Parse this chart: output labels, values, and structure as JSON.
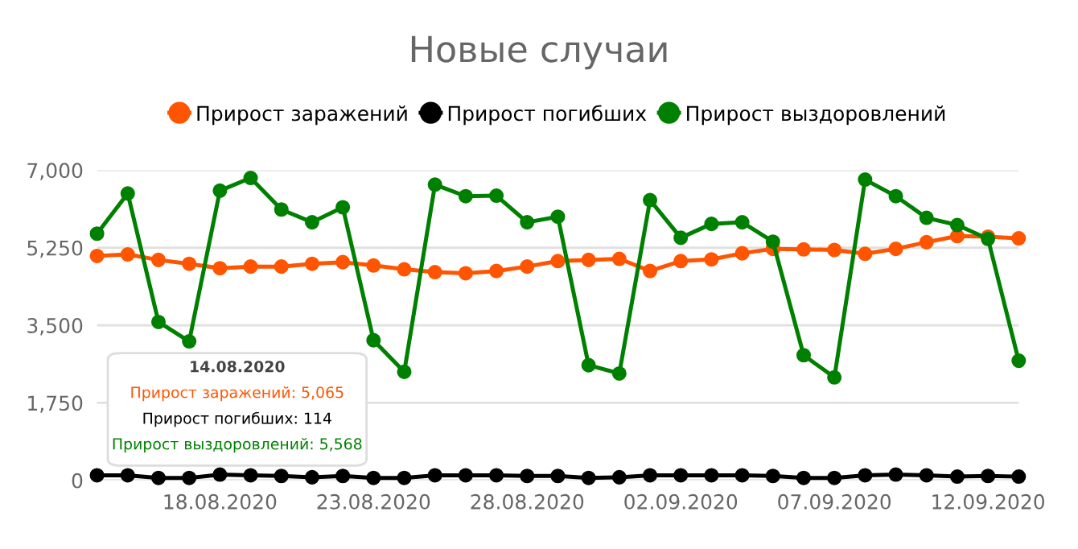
{
  "chart_data": {
    "type": "line",
    "title": "Новые случаи",
    "x": [
      "2020-08-14",
      "2020-08-15",
      "2020-08-16",
      "2020-08-17",
      "2020-08-18",
      "2020-08-19",
      "2020-08-20",
      "2020-08-21",
      "2020-08-22",
      "2020-08-23",
      "2020-08-24",
      "2020-08-25",
      "2020-08-26",
      "2020-08-27",
      "2020-08-28",
      "2020-08-29",
      "2020-08-30",
      "2020-08-31",
      "2020-09-01",
      "2020-09-02",
      "2020-09-03",
      "2020-09-04",
      "2020-09-05",
      "2020-09-06",
      "2020-09-07",
      "2020-09-08",
      "2020-09-09",
      "2020-09-10",
      "2020-09-11",
      "2020-09-12",
      "2020-09-13"
    ],
    "series": [
      {
        "name": "Прирост заражений",
        "color": "#ff5500",
        "values": [
          5065,
          5100,
          4975,
          4888,
          4788,
          4825,
          4825,
          4888,
          4925,
          4850,
          4763,
          4700,
          4675,
          4725,
          4825,
          4950,
          4975,
          5000,
          4725,
          4950,
          4988,
          5125,
          5225,
          5213,
          5200,
          5113,
          5225,
          5375,
          5513,
          5500,
          5463
        ]
      },
      {
        "name": "Прирост погибших",
        "color": "#000000",
        "values": [
          114,
          114,
          55,
          55,
          130,
          114,
          100,
          70,
          100,
          55,
          55,
          114,
          114,
          114,
          100,
          100,
          55,
          70,
          114,
          114,
          114,
          114,
          100,
          55,
          55,
          114,
          130,
          114,
          85,
          100,
          85
        ]
      },
      {
        "name": "Прирост выздоровлений",
        "color": "#008000",
        "values": [
          5568,
          6475,
          3575,
          3138,
          6538,
          6825,
          6113,
          5825,
          6163,
          3163,
          2450,
          6675,
          6413,
          6425,
          5825,
          5950,
          2600,
          2413,
          6325,
          5475,
          5788,
          5825,
          5388,
          2825,
          2325,
          6788,
          6413,
          5925,
          5763,
          5450,
          2700
        ]
      }
    ],
    "xlim": [
      "2020-08-14",
      "2020-09-13"
    ],
    "xticks": [
      {
        "value": "2020-08-18",
        "label": "18.08.2020"
      },
      {
        "value": "2020-08-23",
        "label": "23.08.2020"
      },
      {
        "value": "2020-08-28",
        "label": "28.08.2020"
      },
      {
        "value": "2020-09-02",
        "label": "02.09.2020"
      },
      {
        "value": "2020-09-07",
        "label": "07.09.2020"
      },
      {
        "value": "2020-09-12",
        "label": "12.09.2020"
      }
    ],
    "ylim": [
      0,
      7000
    ],
    "yticks": [
      {
        "value": 0,
        "label": "0"
      },
      {
        "value": 1750,
        "label": "1,750"
      },
      {
        "value": 3500,
        "label": "3,500"
      },
      {
        "value": 5250,
        "label": "5,250"
      },
      {
        "value": 7000,
        "label": "7,000"
      }
    ],
    "grid": "y",
    "legend": "top",
    "marker": "circle",
    "line_style": "solid",
    "annotations": [
      "14.08.2020",
      "Прирост заражений: 5,065",
      "Прирост погибших: 114",
      "Прирост выздоровлений: 5,568"
    ]
  }
}
